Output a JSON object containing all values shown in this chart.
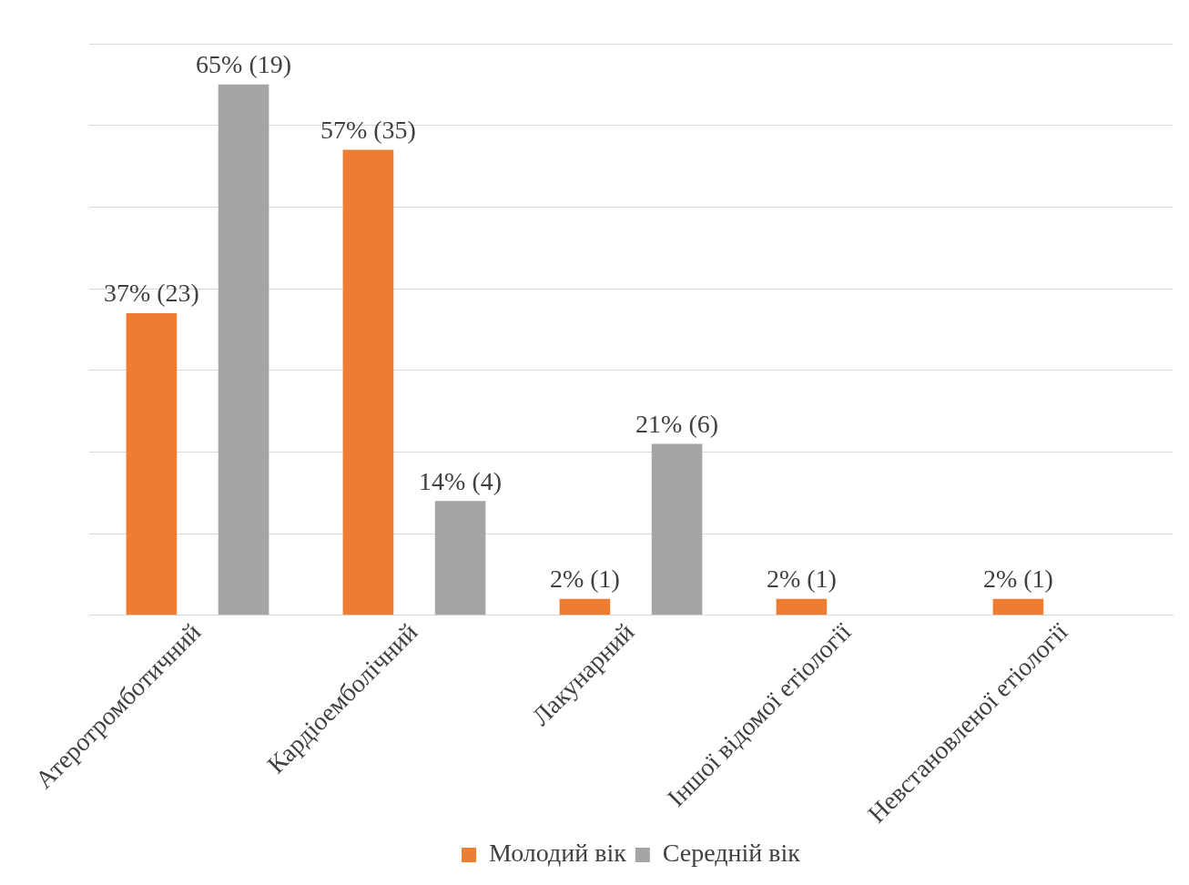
{
  "chart_data": {
    "type": "bar",
    "categories": [
      "Атеротромботичний",
      "Кардіоемболічний",
      "Лакунарний",
      "Іншої відомої етіології",
      "Невстановленої етіології"
    ],
    "series": [
      {
        "name": "Молодий вік",
        "color": "#ed7d31",
        "values": [
          37,
          57,
          2,
          2,
          2
        ],
        "value_labels": [
          "37% (23)",
          "57% (35)",
          "2% (1)",
          "2% (1)",
          "2% (1)"
        ]
      },
      {
        "name": "Середній вік",
        "color": "#a5a5a5",
        "values": [
          65,
          14,
          21,
          null,
          null
        ],
        "value_labels": [
          "65% (19)",
          "14% (4)",
          "21% (6)",
          null,
          null
        ]
      }
    ],
    "grid": "y",
    "legend": "bottom",
    "tick_labels": "x"
  }
}
